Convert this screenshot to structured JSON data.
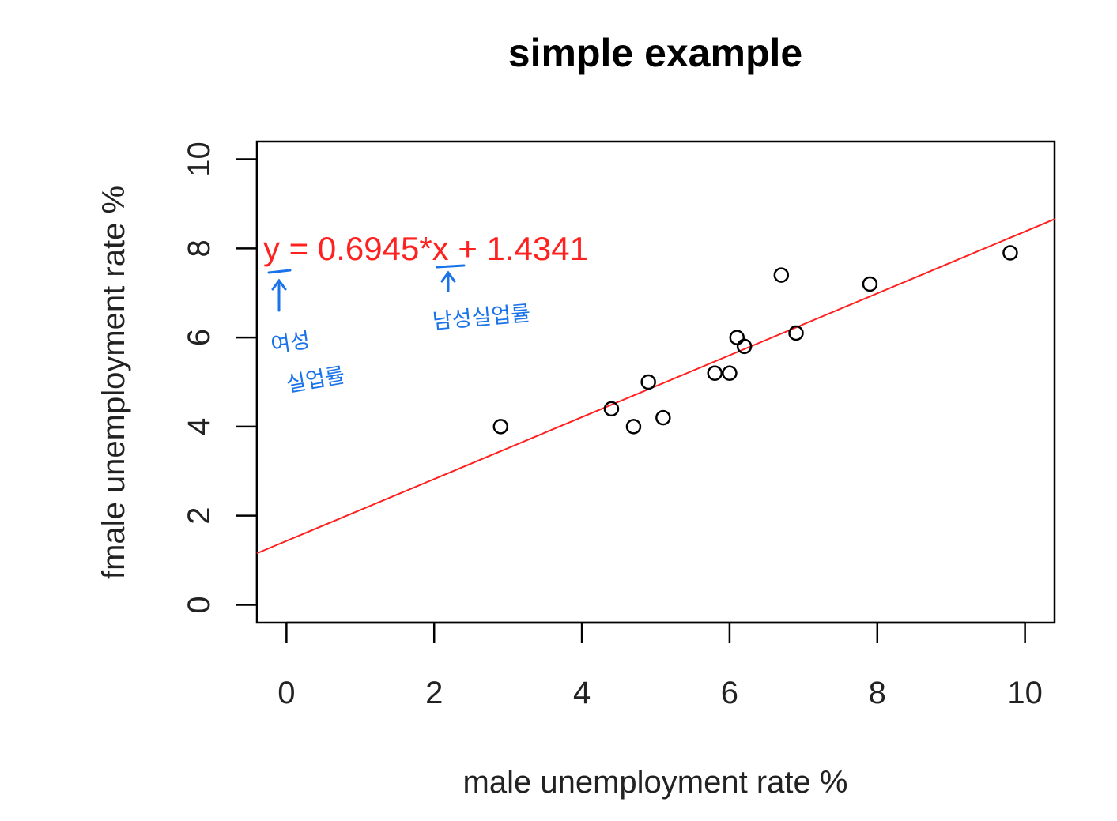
{
  "chart_data": {
    "type": "scatter",
    "title": "simple example",
    "xlabel": "male unemployment rate %",
    "ylabel": "fmale unemployment rate %",
    "xlim": [
      -0.4,
      10.4
    ],
    "ylim": [
      -0.4,
      10.4
    ],
    "xticks": [
      "0",
      "2",
      "4",
      "6",
      "8",
      "10"
    ],
    "yticks": [
      "0",
      "2",
      "4",
      "6",
      "8",
      "10"
    ],
    "grid": false,
    "points": [
      {
        "x": 2.9,
        "y": 4.0
      },
      {
        "x": 4.4,
        "y": 4.4
      },
      {
        "x": 4.7,
        "y": 4.0
      },
      {
        "x": 4.9,
        "y": 5.0
      },
      {
        "x": 5.1,
        "y": 4.2
      },
      {
        "x": 5.8,
        "y": 5.2
      },
      {
        "x": 6.0,
        "y": 5.2
      },
      {
        "x": 6.1,
        "y": 6.0
      },
      {
        "x": 6.2,
        "y": 5.8
      },
      {
        "x": 6.7,
        "y": 7.4
      },
      {
        "x": 6.9,
        "y": 6.1
      },
      {
        "x": 7.9,
        "y": 7.2
      },
      {
        "x": 9.8,
        "y": 7.9
      }
    ],
    "regression": {
      "slope": 0.6945,
      "intercept": 1.4341,
      "color": "#ff2020"
    },
    "equation_label": "y = 0.6945*x + 1.4341",
    "annotations": {
      "y_note_line1": "여성",
      "y_note_line2": "실업률",
      "x_note": "남성실업률",
      "color": "#1a73e8"
    }
  }
}
